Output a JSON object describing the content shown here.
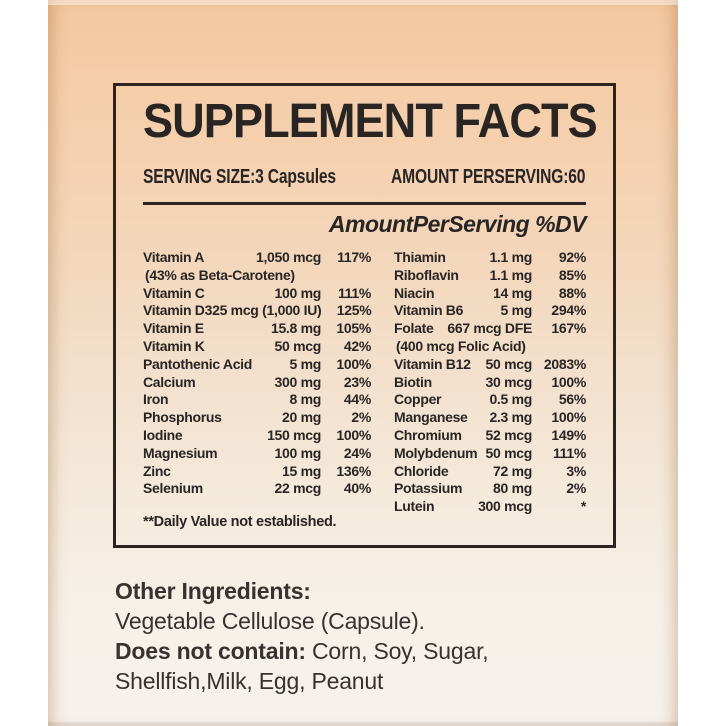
{
  "colors": {
    "band_top": "#f3c69e",
    "band_bottom": "#f6f1ec",
    "panel_border": "#2b2421",
    "panel_text": "#2a2523",
    "footer_text": "#363230",
    "page_margin": "#ffffff"
  },
  "panel": {
    "title": "SUPPLEMENT FACTS",
    "serving_size": "SERVING SIZE:3 Capsules",
    "amount_per_serving": "AMOUNT PERSERVING:60",
    "column_header": "AmountPerServing %DV",
    "footnote": "**Daily Value not established."
  },
  "table": {
    "left": [
      {
        "name": "Vitamin A",
        "amount": "1,050 mcg",
        "pct": "117%"
      },
      {
        "name": "(43% as Beta-Carotene)",
        "amount": "",
        "pct": "",
        "sub": true
      },
      {
        "name": "Vitamin C",
        "amount": "100 mg",
        "pct": "111%"
      },
      {
        "name": "Vitamin D3",
        "amount": "25 mcg (1,000 IU)",
        "pct": "125%"
      },
      {
        "name": "Vitamin E",
        "amount": "15.8 mg",
        "pct": "105%"
      },
      {
        "name": "Vitamin K",
        "amount": "50 mcg",
        "pct": "42%"
      },
      {
        "name": "Pantothenic Acid",
        "amount": "5 mg",
        "pct": "100%"
      },
      {
        "name": "Calcium",
        "amount": "300 mg",
        "pct": "23%"
      },
      {
        "name": "Iron",
        "amount": "8 mg",
        "pct": "44%"
      },
      {
        "name": "Phosphorus",
        "amount": "20 mg",
        "pct": "2%"
      },
      {
        "name": "Iodine",
        "amount": "150 mcg",
        "pct": "100%"
      },
      {
        "name": "Magnesium",
        "amount": "100 mg",
        "pct": "24%"
      },
      {
        "name": "Zinc",
        "amount": "15 mg",
        "pct": "136%"
      },
      {
        "name": "Selenium",
        "amount": "22 mcg",
        "pct": "40%"
      }
    ],
    "right": [
      {
        "name": "Thiamin",
        "amount": "1.1 mg",
        "pct": "92%"
      },
      {
        "name": "Riboflavin",
        "amount": "1.1 mg",
        "pct": "85%"
      },
      {
        "name": "Niacin",
        "amount": "14 mg",
        "pct": "88%"
      },
      {
        "name": "Vitamin B6",
        "amount": "5 mg",
        "pct": "294%"
      },
      {
        "name": "Folate",
        "amount": "667 mcg DFE",
        "pct": "167%"
      },
      {
        "name": "(400 mcg Folic Acid)",
        "amount": "",
        "pct": "",
        "sub": true
      },
      {
        "name": "Vitamin B12",
        "amount": "50 mcg",
        "pct": "2083%"
      },
      {
        "name": "Biotin",
        "amount": "30 mcg",
        "pct": "100%"
      },
      {
        "name": "Copper",
        "amount": "0.5 mg",
        "pct": "56%"
      },
      {
        "name": "Manganese",
        "amount": "2.3 mg",
        "pct": "100%"
      },
      {
        "name": "Chromium",
        "amount": "52 mcg",
        "pct": "149%"
      },
      {
        "name": "Molybdenum",
        "amount": "50 mcg",
        "pct": "111%"
      },
      {
        "name": "Chloride",
        "amount": "72 mg",
        "pct": "3%"
      },
      {
        "name": "Potassium",
        "amount": "80 mg",
        "pct": "2%"
      },
      {
        "name": "Lutein",
        "amount": "300 mcg",
        "pct": "*"
      }
    ]
  },
  "other_info": {
    "other_ingredients_label": "Other Ingredients:",
    "other_ingredients_value": "Vegetable Cellulose (Capsule).",
    "does_not_contain_label": "Does not contain:",
    "does_not_contain_rest": " Corn, Soy, Sugar,",
    "does_not_contain_line2": "Shellfish,Milk, Egg, Peanut"
  }
}
